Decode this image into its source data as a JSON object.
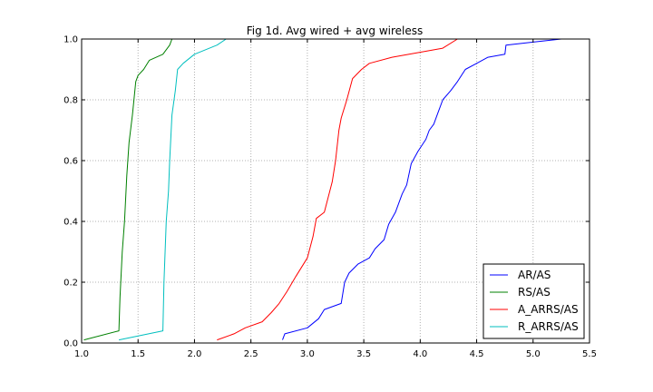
{
  "chart_data": {
    "type": "line",
    "title": "Fig 1d. Avg wired + avg wireless",
    "xlabel": "",
    "ylabel": "",
    "xlim": [
      1.0,
      5.5
    ],
    "ylim": [
      0.0,
      1.0
    ],
    "x_ticks": [
      "1.0",
      "1.5",
      "2.0",
      "2.5",
      "3.0",
      "3.5",
      "4.0",
      "4.5",
      "5.0",
      "5.5"
    ],
    "y_ticks": [
      "0.0",
      "0.2",
      "0.4",
      "0.6",
      "0.8",
      "1.0"
    ],
    "grid": true,
    "legend_position": "lower-right",
    "series": [
      {
        "name": "AR/AS",
        "color": "#0000ff",
        "x": [
          2.78,
          2.8,
          3.0,
          3.1,
          3.15,
          3.3,
          3.33,
          3.37,
          3.45,
          3.55,
          3.6,
          3.68,
          3.72,
          3.78,
          3.84,
          3.88,
          3.92,
          3.98,
          4.05,
          4.08,
          4.12,
          4.16,
          4.2,
          4.27,
          4.33,
          4.4,
          4.5,
          4.6,
          4.75,
          4.76,
          5.0,
          5.25
        ],
        "y": [
          0.01,
          0.03,
          0.05,
          0.08,
          0.11,
          0.13,
          0.2,
          0.23,
          0.26,
          0.28,
          0.31,
          0.34,
          0.39,
          0.43,
          0.49,
          0.52,
          0.59,
          0.63,
          0.67,
          0.7,
          0.72,
          0.76,
          0.8,
          0.83,
          0.86,
          0.9,
          0.92,
          0.94,
          0.95,
          0.98,
          0.99,
          1.0
        ]
      },
      {
        "name": "RS/AS",
        "color": "#008000",
        "x": [
          1.02,
          1.33,
          1.34,
          1.36,
          1.38,
          1.4,
          1.42,
          1.45,
          1.48,
          1.5,
          1.55,
          1.6,
          1.72,
          1.78,
          1.8
        ],
        "y": [
          0.01,
          0.04,
          0.15,
          0.3,
          0.4,
          0.55,
          0.66,
          0.75,
          0.86,
          0.88,
          0.9,
          0.93,
          0.95,
          0.98,
          1.0
        ]
      },
      {
        "name": "A_ARRS/AS",
        "color": "#ff0000",
        "x": [
          2.2,
          2.35,
          2.45,
          2.6,
          2.68,
          2.75,
          2.82,
          2.9,
          3.0,
          3.05,
          3.08,
          3.15,
          3.22,
          3.25,
          3.28,
          3.3,
          3.35,
          3.4,
          3.48,
          3.55,
          3.75,
          4.2,
          4.33
        ],
        "y": [
          0.01,
          0.03,
          0.05,
          0.07,
          0.1,
          0.13,
          0.17,
          0.22,
          0.28,
          0.35,
          0.41,
          0.43,
          0.53,
          0.6,
          0.7,
          0.74,
          0.8,
          0.87,
          0.9,
          0.92,
          0.94,
          0.97,
          1.0
        ]
      },
      {
        "name": "R_ARRS/AS",
        "color": "#00bfbf",
        "x": [
          1.33,
          1.72,
          1.73,
          1.75,
          1.77,
          1.78,
          1.8,
          1.83,
          1.85,
          1.9,
          2.0,
          2.2,
          2.28
        ],
        "y": [
          0.01,
          0.04,
          0.2,
          0.4,
          0.5,
          0.6,
          0.75,
          0.83,
          0.9,
          0.92,
          0.95,
          0.98,
          1.0
        ]
      }
    ]
  }
}
